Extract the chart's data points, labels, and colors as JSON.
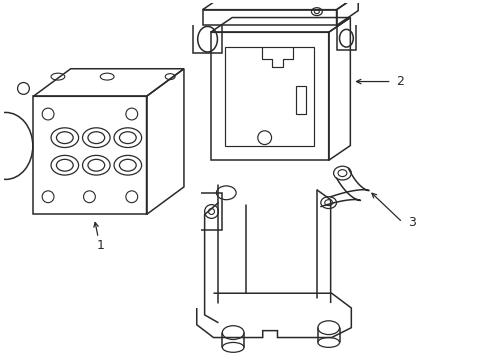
{
  "bg_color": "#ffffff",
  "line_color": "#2a2a2a",
  "line_width": 1.1,
  "fig_width": 4.89,
  "fig_height": 3.6,
  "dpi": 100
}
